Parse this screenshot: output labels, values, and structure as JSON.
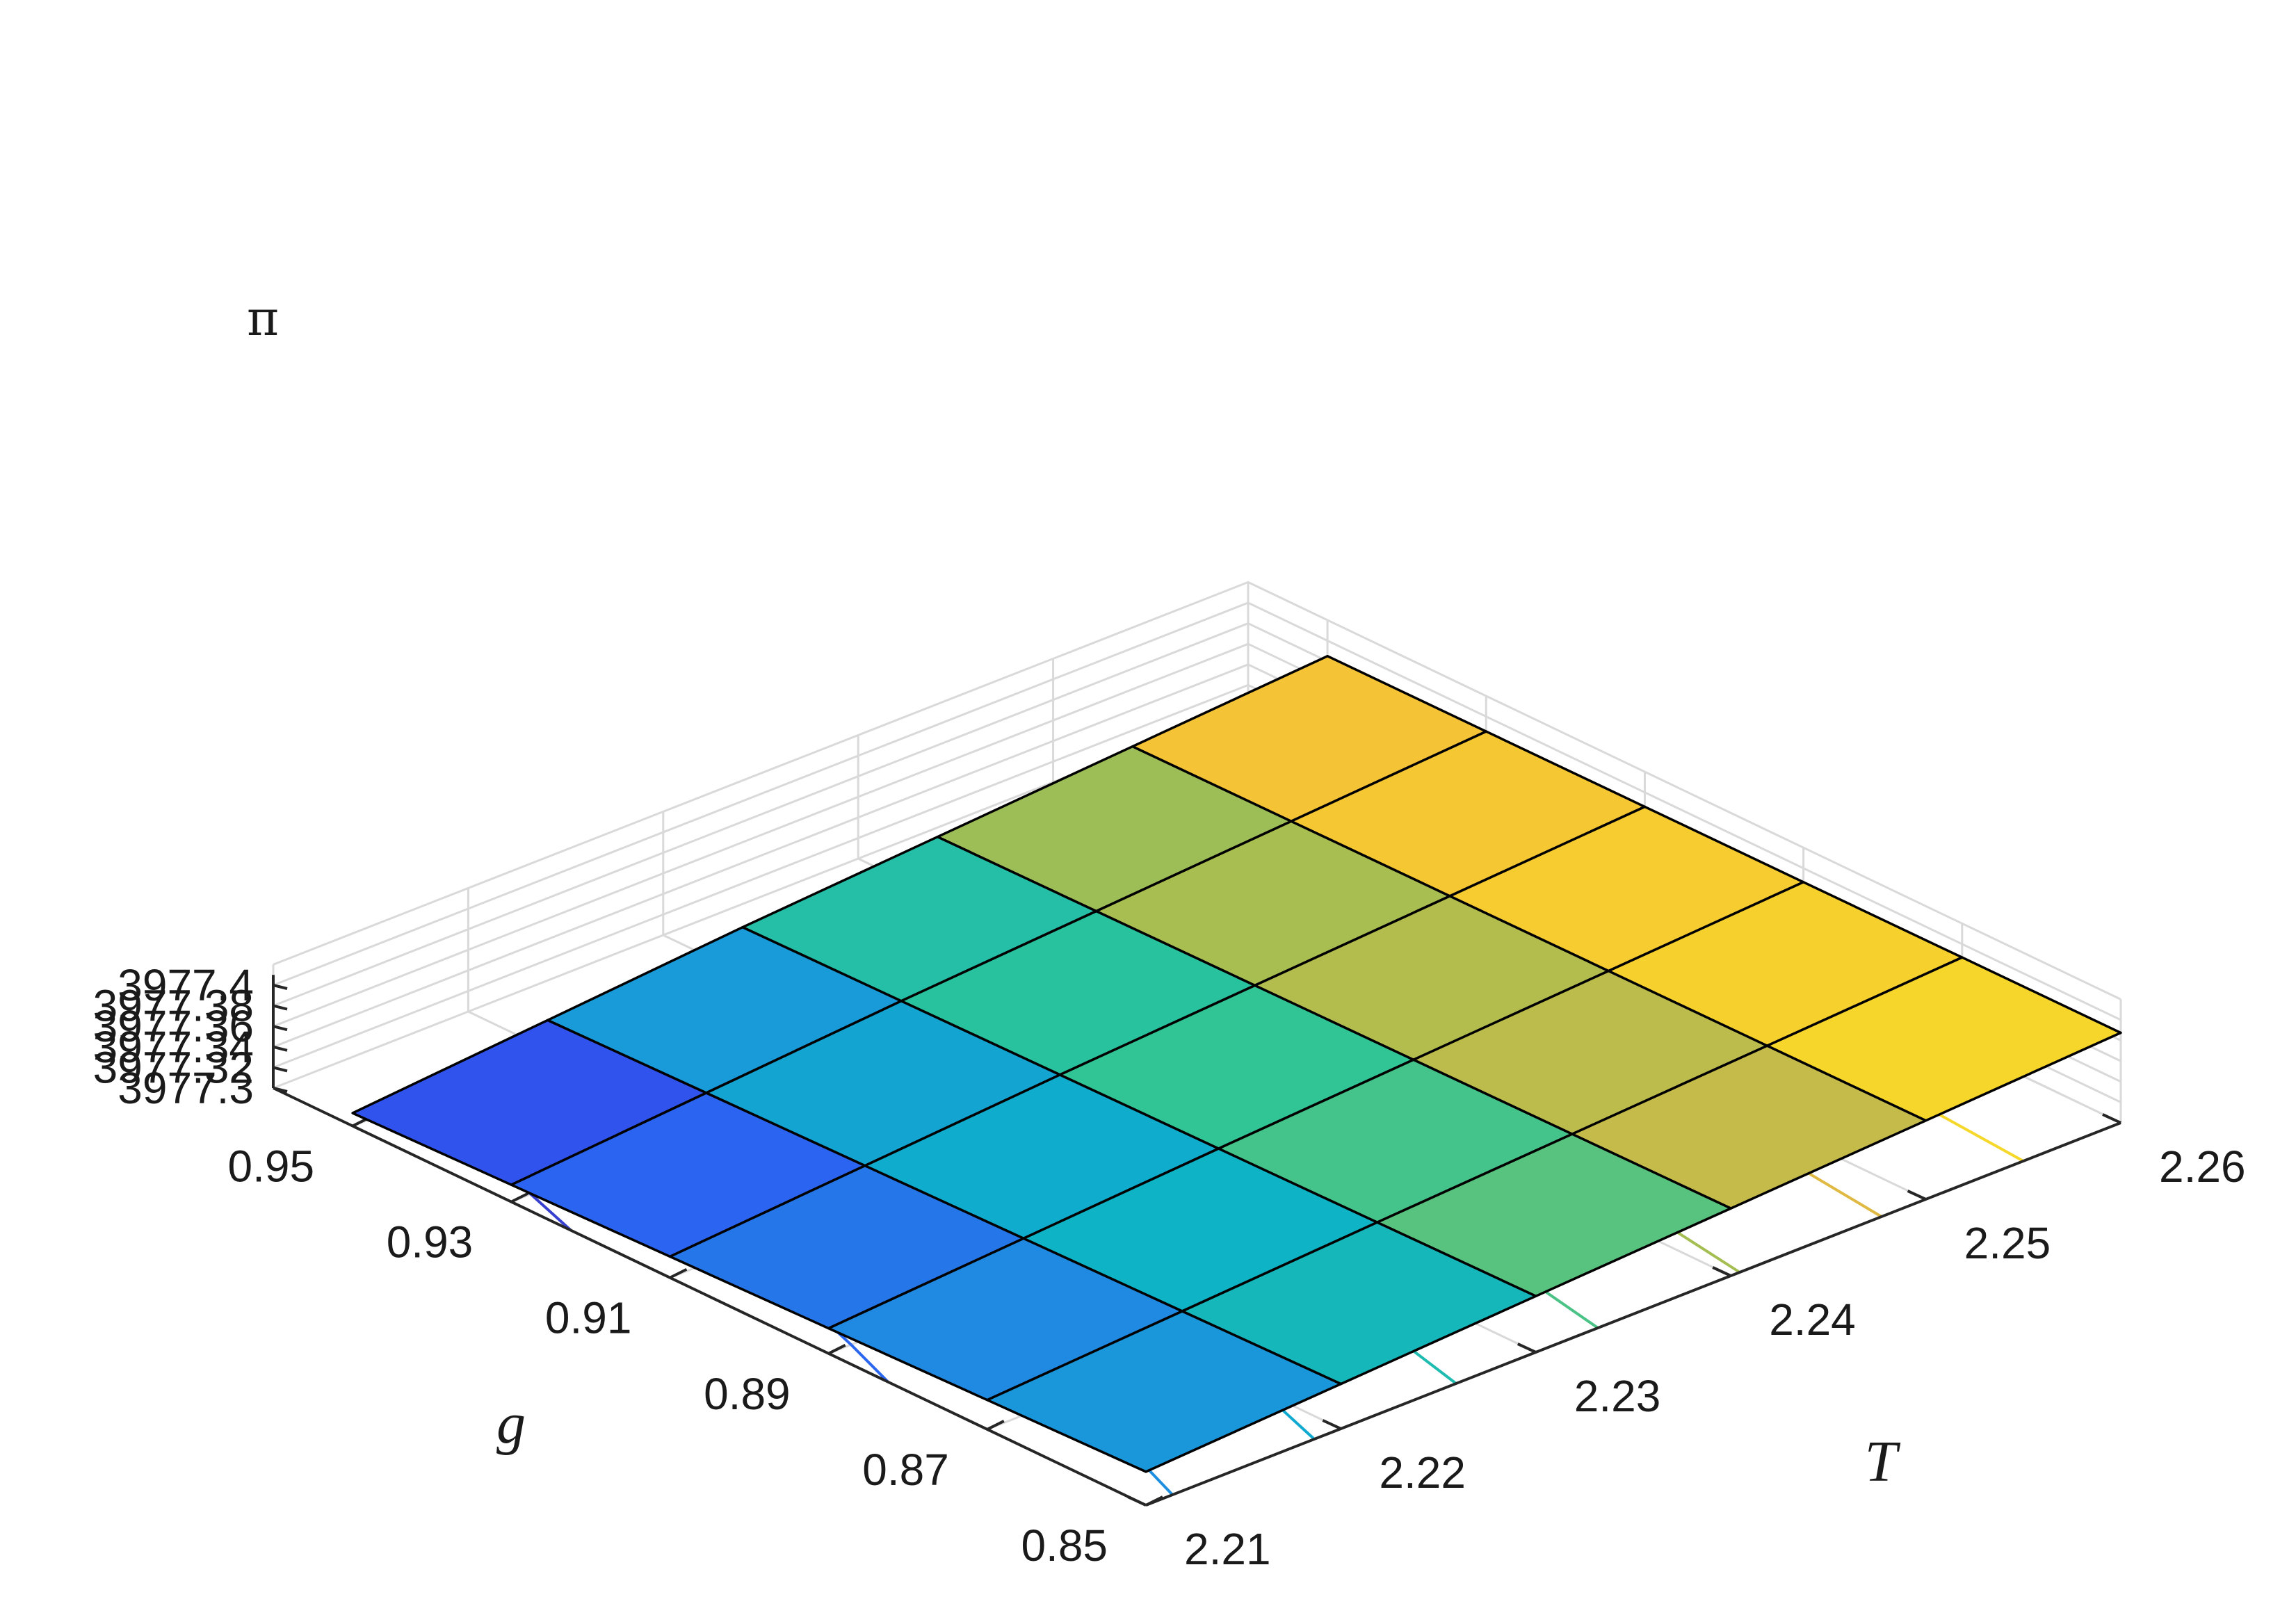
{
  "chart_data": {
    "type": "surface",
    "title": "",
    "xlabel": "g",
    "ylabel": "T",
    "zlabel": "π",
    "x_ticks": [
      0.85,
      0.87,
      0.89,
      0.91,
      0.93,
      0.95
    ],
    "x_tick_labels": [
      "0.85",
      "0.87",
      "0.89",
      "0.91",
      "0.93",
      "0.95"
    ],
    "y_ticks": [
      2.21,
      2.22,
      2.23,
      2.24,
      2.25,
      2.26
    ],
    "y_tick_labels": [
      "2.21",
      "2.22",
      "2.23",
      "2.24",
      "2.25",
      "2.26"
    ],
    "z_ticks": [
      3977.3,
      3977.32,
      3977.34,
      3977.36,
      3977.38,
      3977.4
    ],
    "z_tick_labels": [
      "3977.3",
      "3977.32",
      "3977.34",
      "3977.36",
      "3977.38",
      "3977.4"
    ],
    "xlim": [
      0.85,
      0.96
    ],
    "ylim": [
      2.21,
      2.26
    ],
    "zlim": [
      3977.3,
      3977.42
    ],
    "grid": true,
    "colormap": [
      "#3e26a8",
      "#2f57f5",
      "#1e8fe0",
      "#0cb2c9",
      "#2ec497",
      "#a5be52",
      "#f4b73d",
      "#f9fb15"
    ],
    "surface": {
      "x": [
        0.85,
        0.87,
        0.89,
        0.91,
        0.93,
        0.95
      ],
      "y": [
        2.21,
        2.22,
        2.23,
        2.24,
        2.25,
        2.26
      ],
      "z": [
        [
          3977.3325,
          3977.3435,
          3977.3545,
          3977.3655,
          3977.3765,
          3977.3875
        ],
        [
          3977.3285,
          3977.3405,
          3977.3525,
          3977.364,
          3977.3755,
          3977.387
        ],
        [
          3977.3245,
          3977.3375,
          3977.3505,
          3977.3625,
          3977.3745,
          3977.3865
        ],
        [
          3977.3205,
          3977.3345,
          3977.3485,
          3977.361,
          3977.3735,
          3977.386
        ],
        [
          3977.3165,
          3977.3315,
          3977.3465,
          3977.3595,
          3977.3725,
          3977.3855
        ],
        [
          3977.3125,
          3977.3285,
          3977.3445,
          3977.358,
          3977.3715,
          3977.385
        ]
      ]
    },
    "contour_levels": [
      3977.318,
      3977.326,
      3977.334,
      3977.342,
      3977.35,
      3977.358,
      3977.366,
      3977.374,
      3977.382
    ]
  }
}
